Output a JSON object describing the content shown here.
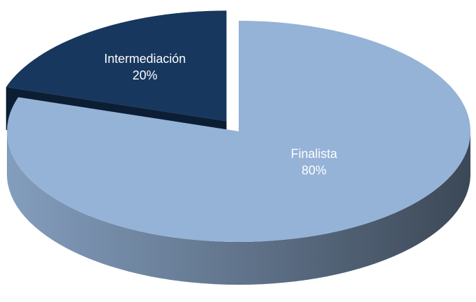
{
  "chart_data": {
    "type": "pie",
    "categories": [
      "Finalista",
      "Intermediación"
    ],
    "values": [
      80,
      20
    ],
    "value_labels": [
      "80%",
      "20%"
    ],
    "colors": [
      "#95b3d7",
      "#17375e"
    ]
  }
}
